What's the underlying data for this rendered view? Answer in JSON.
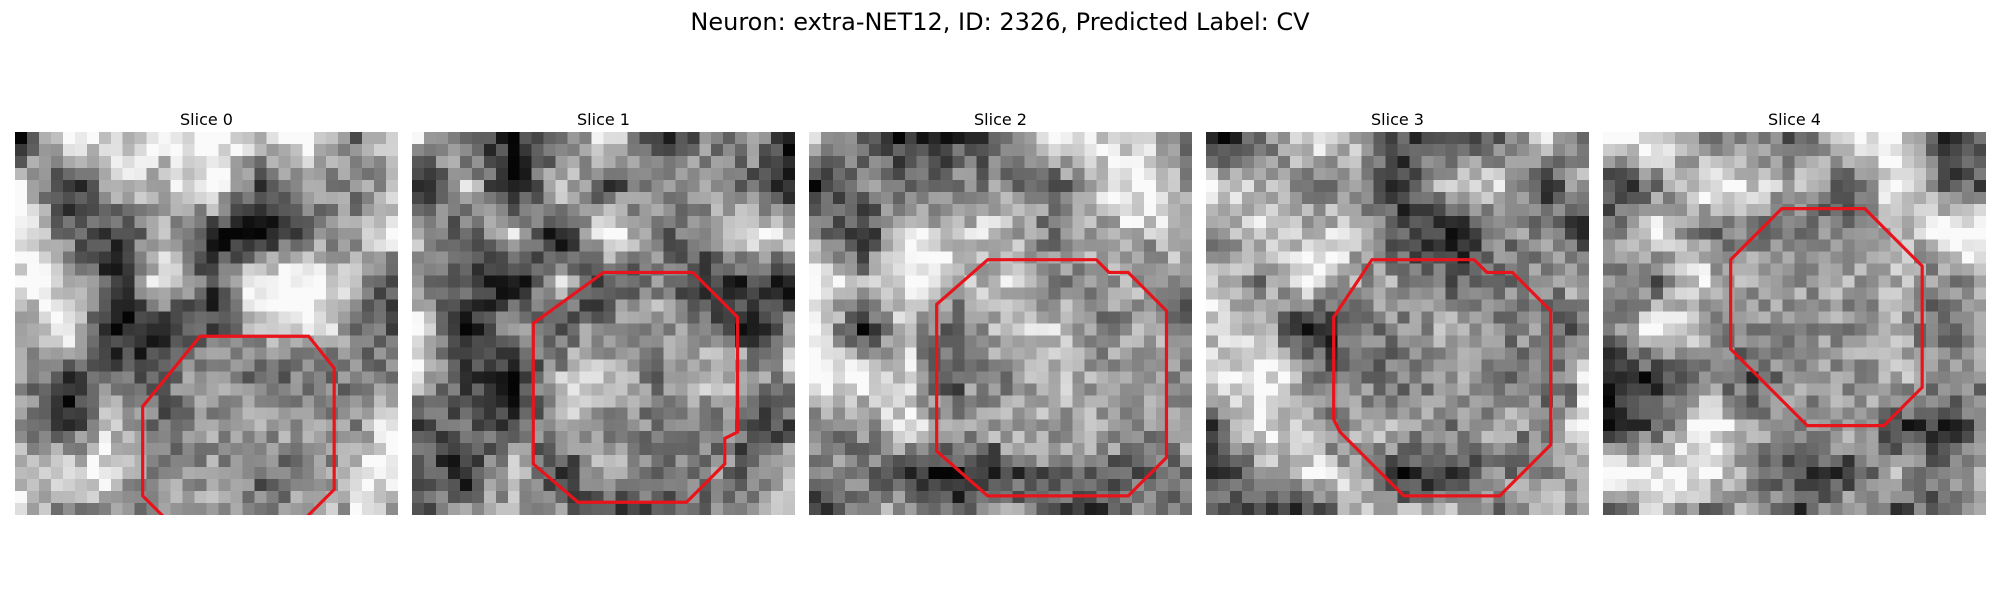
{
  "figure": {
    "title": "Neuron: extra-NET12, ID: 2326, Predicted Label: CV"
  },
  "slices": [
    {
      "label": "Slice 0",
      "seed": 11,
      "brightness": 0.58,
      "contrast": 0.55,
      "interior_tone": 0.42,
      "contour": [
        [
          29,
          32
        ],
        [
          46,
          32
        ],
        [
          50,
          37
        ],
        [
          50,
          56
        ],
        [
          43,
          63
        ],
        [
          26,
          63
        ],
        [
          20,
          57
        ],
        [
          20,
          43
        ]
      ]
    },
    {
      "label": "Slice 1",
      "seed": 23,
      "brightness": 0.52,
      "contrast": 0.55,
      "interior_tone": 0.62,
      "contour": [
        [
          30,
          22
        ],
        [
          44,
          22
        ],
        [
          51,
          29
        ],
        [
          51,
          47
        ],
        [
          49,
          48
        ],
        [
          49,
          52
        ],
        [
          43,
          58
        ],
        [
          26,
          58
        ],
        [
          19,
          52
        ],
        [
          19,
          30
        ]
      ]
    },
    {
      "label": "Slice 2",
      "seed": 37,
      "brightness": 0.55,
      "contrast": 0.5,
      "interior_tone": 0.62,
      "contour": [
        [
          28,
          20
        ],
        [
          45,
          20
        ],
        [
          47,
          22
        ],
        [
          50,
          22
        ],
        [
          56,
          28
        ],
        [
          56,
          51
        ],
        [
          50,
          57
        ],
        [
          28,
          57
        ],
        [
          20,
          50
        ],
        [
          20,
          27
        ]
      ]
    },
    {
      "label": "Slice 3",
      "seed": 41,
      "brightness": 0.5,
      "contrast": 0.55,
      "interior_tone": 0.55,
      "contour": [
        [
          26,
          20
        ],
        [
          42,
          20
        ],
        [
          44,
          22
        ],
        [
          48,
          22
        ],
        [
          54,
          28
        ],
        [
          54,
          49
        ],
        [
          46,
          57
        ],
        [
          31,
          57
        ],
        [
          21,
          47
        ],
        [
          20,
          45
        ],
        [
          20,
          29
        ]
      ]
    },
    {
      "label": "Slice 4",
      "seed": 53,
      "brightness": 0.62,
      "contrast": 0.5,
      "interior_tone": 0.42,
      "contour": [
        [
          28,
          12
        ],
        [
          41,
          12
        ],
        [
          50,
          21
        ],
        [
          50,
          40
        ],
        [
          44,
          46
        ],
        [
          32,
          46
        ],
        [
          20,
          34
        ],
        [
          20,
          20
        ]
      ]
    }
  ],
  "colors": {
    "contour": "#e8141c",
    "background": "#ffffff"
  }
}
